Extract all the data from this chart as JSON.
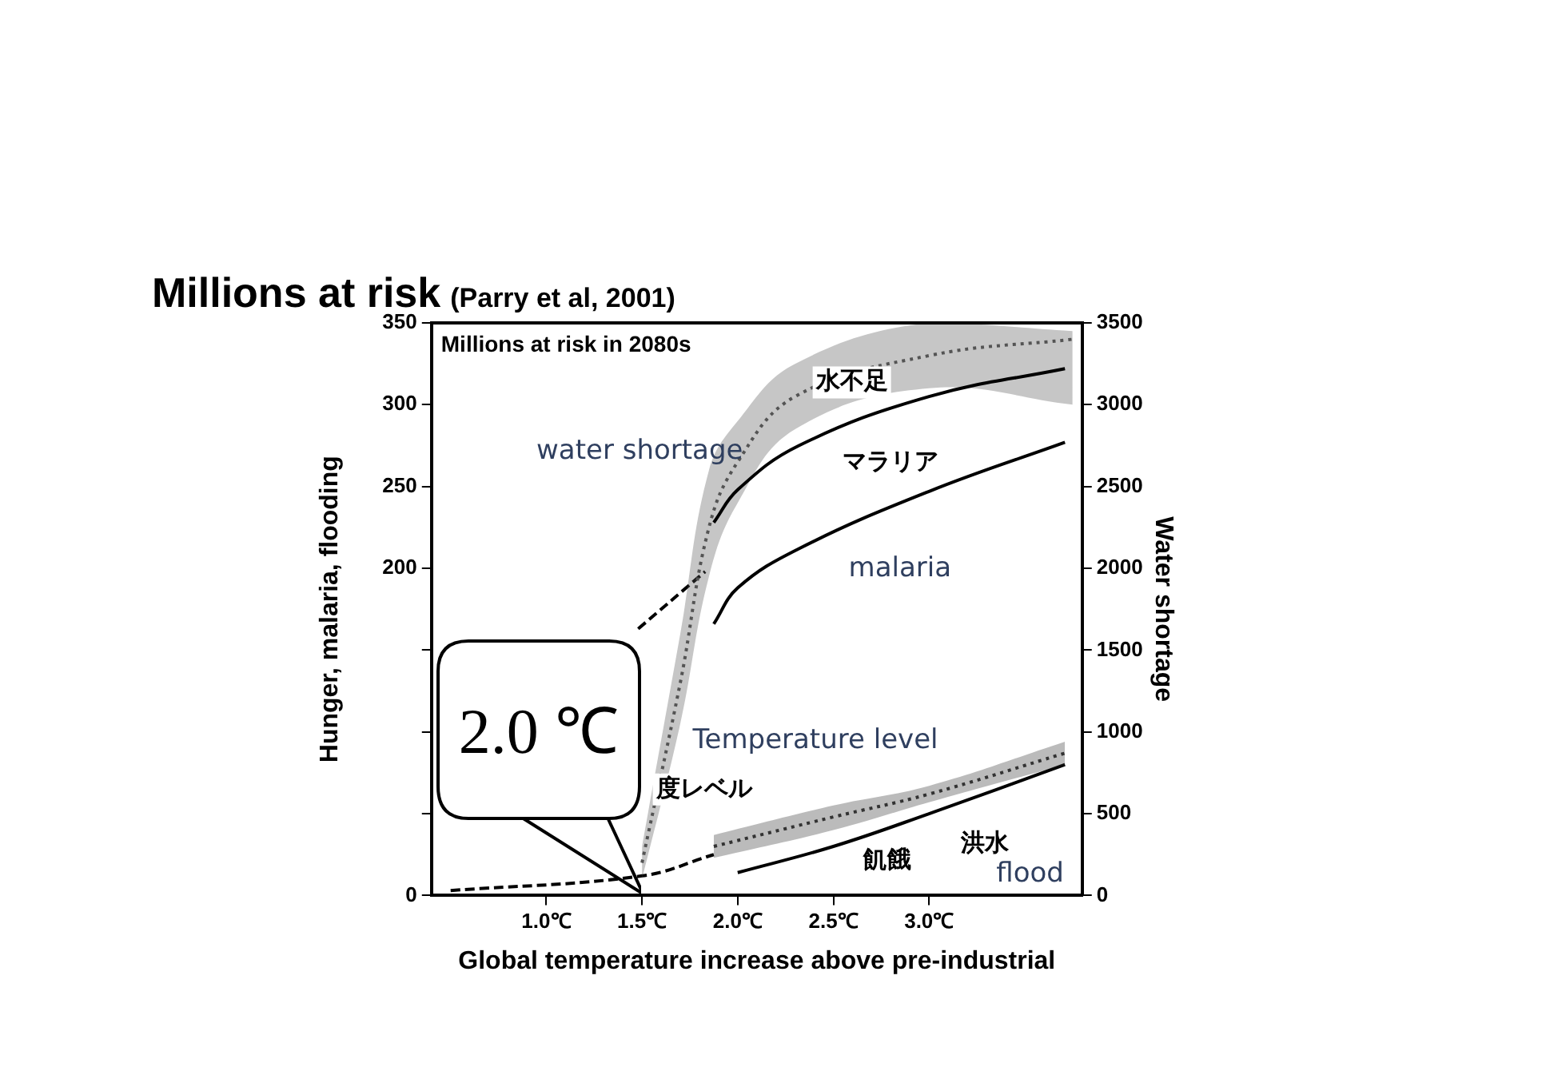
{
  "chart_data": {
    "type": "line",
    "title": "Millions at risk",
    "subtitle": "(Parry et al, 2001)",
    "xlabel": "Global temperature increase above pre-industrial",
    "ylabel": "Hunger, malaria, flooding",
    "y2label": "Water shortage",
    "xlim": [
      0.4,
      3.8
    ],
    "xticks": [
      {
        "value": 1.0,
        "label": "1.0℃"
      },
      {
        "value": 1.5,
        "label": "1.5℃"
      },
      {
        "value": 2.0,
        "label": "2.0℃"
      },
      {
        "value": 2.5,
        "label": "2.5℃"
      },
      {
        "value": 3.0,
        "label": "3.0℃"
      }
    ],
    "ylim": [
      0,
      350
    ],
    "yticks": [
      0,
      {
        "value": 50,
        "label": null
      },
      {
        "value": 100,
        "label": null
      },
      {
        "value": 150,
        "label": null
      },
      200,
      250,
      300,
      350
    ],
    "y2lim": [
      0,
      3500
    ],
    "y2ticks": [
      0,
      500,
      1000,
      1500,
      2000,
      2500,
      3000,
      3500
    ],
    "grid": false,
    "legend": false,
    "marker": "none",
    "series": [
      {
        "color": "#000000",
        "x": [
          1.875,
          2.0,
          2.32,
          3.0,
          3.71
        ],
        "values": [
          228,
          248,
          275,
          305,
          322
        ]
      },
      {
        "color": "#555555",
        "axis": "y2",
        "line_style": "dotted",
        "x": [
          1.5,
          1.7,
          1.85,
          2.0,
          2.3,
          3.0,
          3.75
        ],
        "values": [
          200,
          1300,
          2250,
          2650,
          3050,
          3300,
          3400
        ],
        "lower": [
          100,
          1050,
          1950,
          2400,
          2850,
          3100,
          3000
        ],
        "upper": [
          300,
          1600,
          2600,
          2900,
          3250,
          3500,
          3450
        ]
      },
      {
        "color": "#000000",
        "x": [
          1.875,
          2.0,
          2.32,
          3.0,
          3.71
        ],
        "values": [
          166,
          188,
          212,
          247,
          277
        ]
      },
      {
        "color": "#333333",
        "line_style": "dotted",
        "x": [
          1.875,
          2.5,
          3.0,
          3.71
        ],
        "values": [
          30,
          48,
          62,
          87
        ],
        "lower": [
          23,
          40,
          57,
          80
        ],
        "upper": [
          37,
          55,
          67,
          94
        ]
      },
      {
        "color": "#000000",
        "x": [
          2.0,
          2.5,
          3.0,
          3.71
        ],
        "values": [
          14,
          30,
          50,
          80
        ]
      },
      {
        "color": "#000000",
        "line_style": "dashed",
        "x": [
          1.48,
          1.83
        ],
        "values": [
          163,
          198
        ]
      },
      {
        "color": "#000000",
        "line_style": "dashed",
        "x": [
          0.5,
          1.5,
          1.875
        ],
        "values": [
          3,
          12,
          25
        ]
      }
    ],
    "annotations": [
      "Millions at risk in 2080s",
      "2.0 ℃",
      "water shortage",
      "水不足",
      "マラリア",
      "malaria",
      "Temperature level",
      "度レベル",
      "飢餓",
      "洪水",
      "flood"
    ]
  }
}
